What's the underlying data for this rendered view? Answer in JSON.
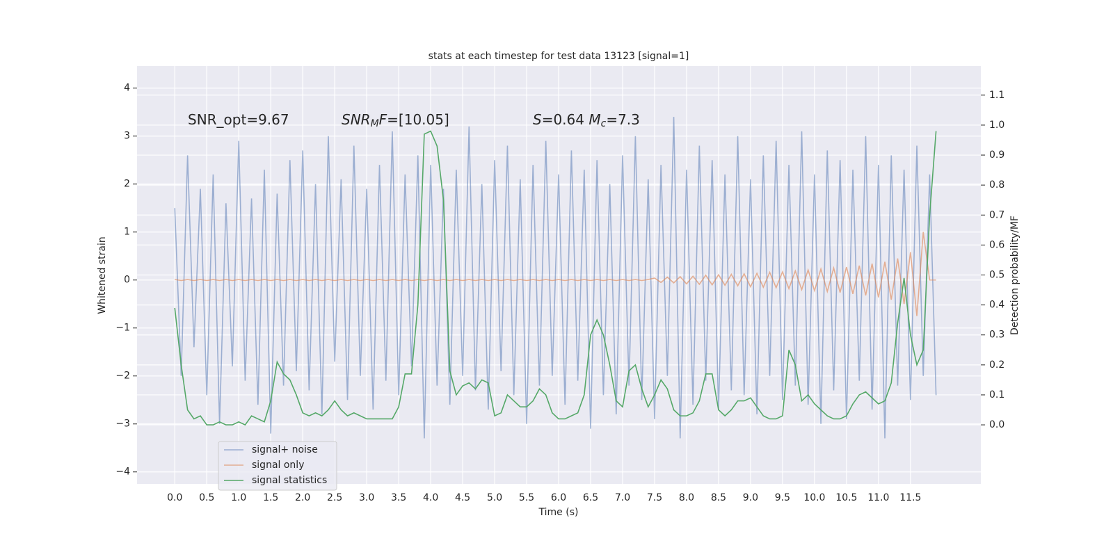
{
  "chart_data": {
    "type": "line",
    "title": "stats at each timestep for test data 13123 [signal=1]",
    "xlabel": "Time (s)",
    "ylabel": "Whitened strain",
    "y2label": "Detection probability/MF",
    "background": "#eaeaf2",
    "grid": true,
    "legend_loc": "lower left",
    "annotations": [
      [
        {
          "text": "SNR_opt=9.67",
          "style": "normal"
        }
      ],
      [
        {
          "text": "SNR",
          "style": "italic"
        },
        {
          "text": "M",
          "style": "italic-sub"
        },
        {
          "text": "F",
          "style": "italic"
        },
        {
          "text": "=[10.05]",
          "style": "normal"
        }
      ],
      [
        {
          "text": "S",
          "style": "italic"
        },
        {
          "text": "=0.64   ",
          "style": "normal"
        },
        {
          "text": "M",
          "style": "italic"
        },
        {
          "text": "c",
          "style": "italic-sub"
        },
        {
          "text": "=7.3",
          "style": "normal"
        }
      ]
    ],
    "xlim": [
      -0.59,
      12.6
    ],
    "ylim": [
      -4.25,
      4.46
    ],
    "y2lim": [
      -0.197,
      1.197
    ],
    "xticks": [
      {
        "value": 0,
        "label": "0.0"
      },
      0.5,
      {
        "value": 1,
        "label": "1.0"
      },
      1.5,
      {
        "value": 2,
        "label": "2.0"
      },
      2.5,
      {
        "value": 3,
        "label": "3.0"
      },
      3.5,
      {
        "value": 4,
        "label": "4.0"
      },
      4.5,
      {
        "value": 5,
        "label": "5.0"
      },
      5.5,
      {
        "value": 6,
        "label": "6.0"
      },
      6.5,
      {
        "value": 7,
        "label": "7.0"
      },
      7.5,
      {
        "value": 8,
        "label": "8.0"
      },
      8.5,
      {
        "value": 9,
        "label": "9.0"
      },
      9.5,
      {
        "value": 10,
        "label": "10.0"
      },
      10.5,
      {
        "value": 11,
        "label": "11.0"
      },
      11.5
    ],
    "yticks": [
      {
        "value": -4,
        "label": "−4"
      },
      {
        "value": -3,
        "label": "−3"
      },
      {
        "value": -2,
        "label": "−2"
      },
      {
        "value": -1,
        "label": "−1"
      },
      0,
      1,
      2,
      3,
      4
    ],
    "y2ticks": [
      {
        "value": 0,
        "label": "0.0"
      },
      0.1,
      0.2,
      0.3,
      0.4,
      0.5,
      0.6,
      0.7,
      0.8,
      0.9,
      {
        "value": 1,
        "label": "1.0"
      },
      1.1
    ],
    "x": [
      0.0,
      0.1,
      0.2,
      0.3,
      0.4,
      0.5,
      0.6,
      0.7,
      0.8,
      0.9,
      1.0,
      1.1,
      1.2,
      1.3,
      1.4,
      1.5,
      1.6,
      1.7,
      1.8,
      1.9,
      2.0,
      2.1,
      2.2,
      2.3,
      2.4,
      2.5,
      2.6,
      2.7,
      2.8,
      2.9,
      3.0,
      3.1,
      3.2,
      3.3,
      3.4,
      3.5,
      3.6,
      3.7,
      3.8,
      3.9,
      4.0,
      4.1,
      4.2,
      4.3,
      4.4,
      4.5,
      4.6,
      4.7,
      4.8,
      4.9,
      5.0,
      5.1,
      5.2,
      5.3,
      5.4,
      5.5,
      5.6,
      5.7,
      5.8,
      5.9,
      6.0,
      6.1,
      6.2,
      6.3,
      6.4,
      6.5,
      6.6,
      6.7,
      6.8,
      6.9,
      7.0,
      7.1,
      7.2,
      7.3,
      7.4,
      7.5,
      7.6,
      7.7,
      7.8,
      7.9,
      8.0,
      8.1,
      8.2,
      8.3,
      8.4,
      8.5,
      8.6,
      8.7,
      8.8,
      8.9,
      9.0,
      9.1,
      9.2,
      9.3,
      9.4,
      9.5,
      9.6,
      9.7,
      9.8,
      9.9,
      10.0,
      10.1,
      10.2,
      10.3,
      10.4,
      10.5,
      10.6,
      10.7,
      10.8,
      10.9,
      11.0,
      11.1,
      11.2,
      11.3,
      11.4,
      11.5,
      11.6,
      11.7,
      11.8,
      11.9
    ],
    "series": [
      {
        "name": "signal+ noise",
        "color": "#4c72b0",
        "opacity": 0.5,
        "values": [
          1.5,
          -2.0,
          2.6,
          -1.4,
          1.9,
          -2.4,
          2.2,
          -3.0,
          1.6,
          -1.8,
          2.9,
          -2.1,
          1.7,
          -2.6,
          2.3,
          -3.2,
          1.8,
          -2.2,
          2.5,
          -1.9,
          2.7,
          -2.3,
          2.0,
          -2.8,
          3.0,
          -1.7,
          2.1,
          -2.5,
          2.8,
          -2.0,
          1.9,
          -2.7,
          2.4,
          -2.1,
          3.1,
          -2.4,
          2.2,
          -1.8,
          2.6,
          -3.3,
          2.4,
          -2.2,
          1.9,
          -2.6,
          2.3,
          -2.0,
          3.2,
          -2.3,
          2.0,
          -2.7,
          2.5,
          -1.9,
          2.8,
          -2.4,
          2.1,
          -3.0,
          2.4,
          -2.2,
          2.9,
          -2.0,
          2.2,
          -2.6,
          2.7,
          -2.1,
          2.3,
          -3.1,
          2.5,
          -2.4,
          2.0,
          -2.8,
          2.6,
          -2.2,
          3.0,
          -2.5,
          2.1,
          -2.9,
          2.4,
          -2.0,
          3.4,
          -3.3,
          2.3,
          -2.6,
          2.8,
          -2.1,
          2.5,
          -2.7,
          2.2,
          -2.3,
          3.0,
          -2.4,
          2.1,
          -2.8,
          2.6,
          -2.0,
          2.9,
          -2.5,
          2.4,
          -2.2,
          3.1,
          -2.6,
          2.2,
          -3.0,
          2.7,
          -2.3,
          2.5,
          -2.9,
          2.3,
          -2.1,
          3.0,
          -2.7,
          2.4,
          -3.3,
          2.6,
          -2.2,
          2.3,
          -2.5,
          2.8,
          -2.0,
          2.2,
          -2.4
        ]
      },
      {
        "name": "signal only",
        "color": "#dd8452",
        "opacity": 0.6,
        "values": [
          0.01,
          -0.01,
          0.01,
          -0.01,
          0.01,
          -0.01,
          0.01,
          -0.01,
          0.01,
          -0.01,
          0.01,
          -0.01,
          0.01,
          -0.01,
          0.01,
          -0.01,
          0.01,
          -0.01,
          0.01,
          -0.01,
          0.01,
          -0.01,
          0.01,
          -0.01,
          0.01,
          -0.01,
          0.01,
          -0.01,
          0.01,
          -0.01,
          0.01,
          -0.01,
          0.01,
          -0.01,
          0.01,
          -0.01,
          0.01,
          -0.01,
          0.01,
          -0.01,
          0.01,
          -0.01,
          0.01,
          -0.01,
          0.01,
          -0.01,
          0.01,
          -0.01,
          0.01,
          -0.01,
          0.01,
          -0.01,
          0.01,
          -0.01,
          0.01,
          -0.01,
          0.01,
          -0.01,
          0.01,
          -0.01,
          0.01,
          -0.01,
          0.01,
          -0.01,
          0.01,
          -0.01,
          0.01,
          -0.01,
          0.01,
          -0.01,
          0.01,
          -0.01,
          0.01,
          -0.01,
          0.01,
          0.04,
          -0.05,
          0.06,
          -0.06,
          0.07,
          -0.08,
          0.08,
          -0.09,
          0.1,
          -0.1,
          0.11,
          -0.11,
          0.12,
          -0.12,
          0.13,
          -0.14,
          0.14,
          -0.15,
          0.16,
          -0.16,
          0.17,
          -0.18,
          0.19,
          -0.2,
          0.21,
          -0.22,
          0.23,
          -0.24,
          0.25,
          -0.26,
          0.27,
          -0.29,
          0.3,
          -0.32,
          0.34,
          -0.36,
          0.38,
          -0.41,
          0.45,
          -0.5,
          0.58,
          -0.75,
          1.0,
          0.0,
          0.0
        ]
      },
      {
        "name": "signal statistics",
        "color": "#55a868",
        "opacity": 1,
        "axis": "y2",
        "values": [
          0.39,
          0.2,
          0.05,
          0.02,
          0.03,
          0.0,
          0.0,
          0.01,
          0.0,
          0.0,
          0.01,
          0.0,
          0.03,
          0.02,
          0.01,
          0.08,
          0.21,
          0.17,
          0.15,
          0.1,
          0.04,
          0.03,
          0.04,
          0.03,
          0.05,
          0.08,
          0.05,
          0.03,
          0.04,
          0.03,
          0.02,
          0.02,
          0.02,
          0.02,
          0.02,
          0.06,
          0.17,
          0.17,
          0.4,
          0.97,
          0.98,
          0.93,
          0.75,
          0.18,
          0.1,
          0.13,
          0.14,
          0.12,
          0.15,
          0.14,
          0.03,
          0.04,
          0.1,
          0.08,
          0.06,
          0.06,
          0.08,
          0.12,
          0.1,
          0.04,
          0.02,
          0.02,
          0.03,
          0.04,
          0.1,
          0.3,
          0.35,
          0.3,
          0.2,
          0.08,
          0.06,
          0.18,
          0.2,
          0.12,
          0.06,
          0.1,
          0.15,
          0.12,
          0.05,
          0.03,
          0.03,
          0.04,
          0.08,
          0.17,
          0.17,
          0.05,
          0.03,
          0.05,
          0.08,
          0.08,
          0.09,
          0.06,
          0.03,
          0.02,
          0.02,
          0.03,
          0.25,
          0.2,
          0.08,
          0.1,
          0.07,
          0.05,
          0.03,
          0.02,
          0.02,
          0.03,
          0.07,
          0.1,
          0.11,
          0.09,
          0.07,
          0.08,
          0.14,
          0.34,
          0.49,
          0.3,
          0.2,
          0.25,
          0.7,
          0.98
        ]
      }
    ]
  }
}
